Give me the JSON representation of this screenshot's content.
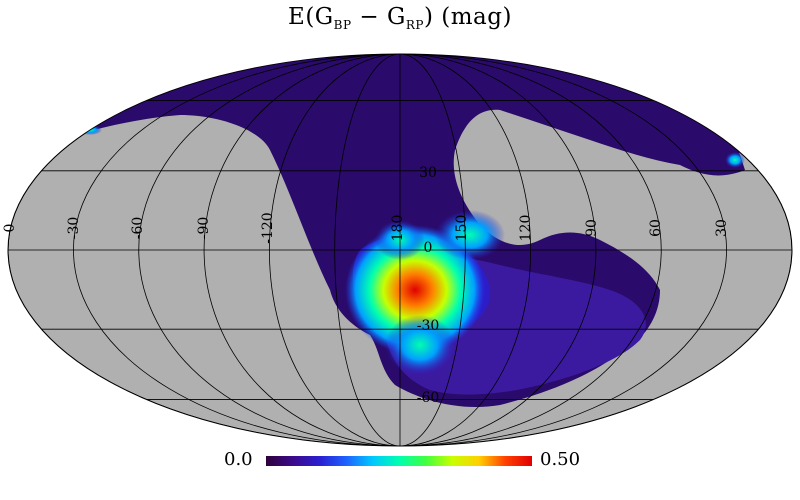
{
  "title": {
    "prefix": "E(G",
    "sub1": "BP",
    "middle": " − G",
    "sub2": "RP",
    "suffix": ") (mag)"
  },
  "projection": "mollweide",
  "colors": {
    "background": "#b0b0b0",
    "graticule": "#000000",
    "colormap": [
      "#30003a",
      "#3b0a8a",
      "#2a1fd0",
      "#1f60ff",
      "#00c8ff",
      "#00ffb0",
      "#40ff40",
      "#c8ff00",
      "#ffd000",
      "#ff4000",
      "#e00000"
    ]
  },
  "longitude_labels": [
    "0",
    "-30",
    "-60",
    "-90",
    "-120",
    "180",
    "150",
    "120",
    "90",
    "60",
    "30"
  ],
  "latitude_labels": [
    "30",
    "0",
    "-30",
    "-60"
  ],
  "colorbar": {
    "min_label": "0.0",
    "max_label": "0.50",
    "range": [
      0.0,
      0.5
    ]
  }
}
